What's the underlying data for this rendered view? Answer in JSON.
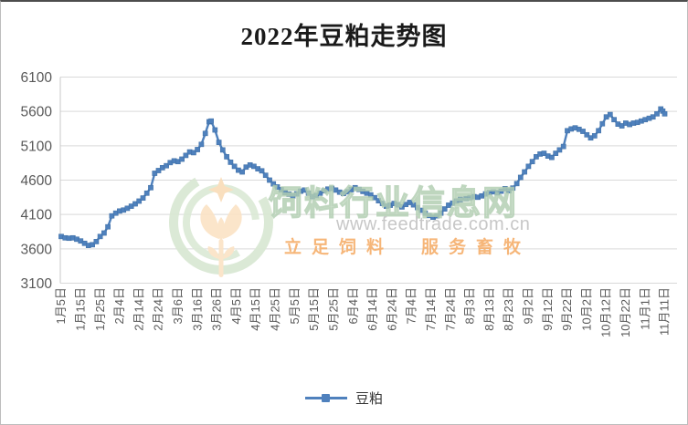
{
  "chart_data": {
    "type": "line",
    "title": "2022年豆粕走势图",
    "grid": true,
    "legend": {
      "position": "bottom"
    },
    "y_axis": {
      "min": 3100,
      "max": 6100,
      "ticks": [
        6100,
        5600,
        5100,
        4600,
        4100,
        3600,
        3100
      ]
    },
    "x_axis": {
      "interval_days": 10,
      "tick_labels": [
        "1月5日",
        "1月15日",
        "1月25日",
        "2月4日",
        "2月14日",
        "2月24日",
        "3月6日",
        "3月16日",
        "3月26日",
        "4月5日",
        "4月15日",
        "4月25日",
        "5月5日",
        "5月15日",
        "5月25日",
        "6月4日",
        "6月14日",
        "6月24日",
        "7月4日",
        "7月14日",
        "7月24日",
        "8月3日",
        "8月13日",
        "8月23日",
        "9月2日",
        "9月12日",
        "9月22日",
        "10月2日",
        "10月12日",
        "10月22日",
        "11月1日",
        "11月11日"
      ]
    },
    "series": [
      {
        "name": "豆粕",
        "color": "#4F81BD",
        "points": [
          [
            "1月5日",
            3780
          ],
          [
            "1月7日",
            3760
          ],
          [
            "1月9日",
            3755
          ],
          [
            "1月11日",
            3760
          ],
          [
            "1月13日",
            3740
          ],
          [
            "1月15日",
            3715
          ],
          [
            "1月17日",
            3680
          ],
          [
            "1月19日",
            3650
          ],
          [
            "1月21日",
            3660
          ],
          [
            "1月23日",
            3705
          ],
          [
            "1月25日",
            3780
          ],
          [
            "1月27日",
            3830
          ],
          [
            "1月29日",
            3920
          ],
          [
            "1月31日",
            4080
          ],
          [
            "2月2日",
            4120
          ],
          [
            "2月4日",
            4150
          ],
          [
            "2月6日",
            4165
          ],
          [
            "2月8日",
            4190
          ],
          [
            "2月10日",
            4220
          ],
          [
            "2月12日",
            4255
          ],
          [
            "2月14日",
            4295
          ],
          [
            "2月16日",
            4340
          ],
          [
            "2月18日",
            4410
          ],
          [
            "2月20日",
            4490
          ],
          [
            "2月22日",
            4700
          ],
          [
            "2月24日",
            4740
          ],
          [
            "2月26日",
            4780
          ],
          [
            "2月28日",
            4810
          ],
          [
            "3月2日",
            4855
          ],
          [
            "3月4日",
            4880
          ],
          [
            "3月6日",
            4870
          ],
          [
            "3月8日",
            4905
          ],
          [
            "3月10日",
            4960
          ],
          [
            "3月12日",
            5010
          ],
          [
            "3月14日",
            5000
          ],
          [
            "3月16日",
            5045
          ],
          [
            "3月18日",
            5120
          ],
          [
            "3月20日",
            5280
          ],
          [
            "3月22日",
            5450
          ],
          [
            "3月23日",
            5460
          ],
          [
            "3月25日",
            5330
          ],
          [
            "3月27日",
            5150
          ],
          [
            "3月29日",
            5040
          ],
          [
            "3月31日",
            4940
          ],
          [
            "4月2日",
            4860
          ],
          [
            "4月4日",
            4800
          ],
          [
            "4月6日",
            4745
          ],
          [
            "4月8日",
            4720
          ],
          [
            "4月10日",
            4790
          ],
          [
            "4月12日",
            4820
          ],
          [
            "4月14日",
            4800
          ],
          [
            "4月16日",
            4765
          ],
          [
            "4月18日",
            4735
          ],
          [
            "4月20日",
            4670
          ],
          [
            "4月22日",
            4600
          ],
          [
            "4月24日",
            4545
          ],
          [
            "4月26日",
            4500
          ],
          [
            "4月28日",
            4460
          ],
          [
            "4月30日",
            4420
          ],
          [
            "5月2日",
            4395
          ],
          [
            "5月4日",
            4370
          ],
          [
            "5月6日",
            4400
          ],
          [
            "5月8日",
            4440
          ],
          [
            "5月10日",
            4455
          ],
          [
            "5月12日",
            4410
          ],
          [
            "5月14日",
            4360
          ],
          [
            "5月16日",
            4375
          ],
          [
            "5月18日",
            4410
          ],
          [
            "5月20日",
            4445
          ],
          [
            "5月22日",
            4470
          ],
          [
            "5月24日",
            4480
          ],
          [
            "5月26日",
            4455
          ],
          [
            "5月28日",
            4425
          ],
          [
            "5月30日",
            4405
          ],
          [
            "6月1日",
            4430
          ],
          [
            "6月3日",
            4460
          ],
          [
            "6月5日",
            4490
          ],
          [
            "6月7日",
            4465
          ],
          [
            "6月9日",
            4435
          ],
          [
            "6月11日",
            4410
          ],
          [
            "6月13日",
            4385
          ],
          [
            "6月15日",
            4345
          ],
          [
            "6月17日",
            4300
          ],
          [
            "6月19日",
            4260
          ],
          [
            "6月21日",
            4220
          ],
          [
            "6月23日",
            4235
          ],
          [
            "6月25日",
            4260
          ],
          [
            "6月27日",
            4240
          ],
          [
            "6月29日",
            4210
          ],
          [
            "7月1日",
            4245
          ],
          [
            "7月3日",
            4275
          ],
          [
            "7月5日",
            4240
          ],
          [
            "7月7日",
            4200
          ],
          [
            "7月9日",
            4160
          ],
          [
            "7月11日",
            4120
          ],
          [
            "7月13日",
            4085
          ],
          [
            "7月15日",
            4060
          ],
          [
            "7月17日",
            4080
          ],
          [
            "7月19日",
            4120
          ],
          [
            "7月21日",
            4180
          ],
          [
            "7月23日",
            4235
          ],
          [
            "7月25日",
            4265
          ],
          [
            "7月27日",
            4295
          ],
          [
            "7月29日",
            4320
          ],
          [
            "8月1日",
            4330
          ],
          [
            "8月3日",
            4345
          ],
          [
            "8月5日",
            4360
          ],
          [
            "8月7日",
            4350
          ],
          [
            "8月9日",
            4370
          ],
          [
            "8月11日",
            4400
          ],
          [
            "8月13日",
            4420
          ],
          [
            "8月15日",
            4430
          ],
          [
            "8月17日",
            4415
          ],
          [
            "8月19日",
            4440
          ],
          [
            "8月21日",
            4475
          ],
          [
            "8月23日",
            4445
          ],
          [
            "8月25日",
            4485
          ],
          [
            "8月27日",
            4550
          ],
          [
            "8月29日",
            4640
          ],
          [
            "8月31日",
            4720
          ],
          [
            "9月2日",
            4800
          ],
          [
            "9月4日",
            4870
          ],
          [
            "9月6日",
            4940
          ],
          [
            "9月8日",
            4980
          ],
          [
            "9月10日",
            4990
          ],
          [
            "9月12日",
            4950
          ],
          [
            "9月14日",
            4930
          ],
          [
            "9月16日",
            4990
          ],
          [
            "9月18日",
            5040
          ],
          [
            "9月20日",
            5090
          ],
          [
            "9月22日",
            5320
          ],
          [
            "9月24日",
            5345
          ],
          [
            "9月26日",
            5360
          ],
          [
            "9月28日",
            5340
          ],
          [
            "9月30日",
            5310
          ],
          [
            "10月2日",
            5260
          ],
          [
            "10月4日",
            5215
          ],
          [
            "10月6日",
            5245
          ],
          [
            "10月8日",
            5320
          ],
          [
            "10月10日",
            5420
          ],
          [
            "10月12日",
            5520
          ],
          [
            "10月14日",
            5555
          ],
          [
            "10月16日",
            5480
          ],
          [
            "10月18日",
            5415
          ],
          [
            "10月20日",
            5390
          ],
          [
            "10月22日",
            5430
          ],
          [
            "10月24日",
            5410
          ],
          [
            "10月26日",
            5430
          ],
          [
            "10月28日",
            5440
          ],
          [
            "10月30日",
            5460
          ],
          [
            "11月1日",
            5480
          ],
          [
            "11月3日",
            5500
          ],
          [
            "11月5日",
            5520
          ],
          [
            "11月7日",
            5565
          ],
          [
            "11月9日",
            5635
          ],
          [
            "11月10日",
            5605
          ],
          [
            "11月11日",
            5565
          ]
        ]
      }
    ]
  },
  "watermark": {
    "site_name": "饲料行业信息网",
    "url": "www.feedtrade.com.cn",
    "slogan": "立足饲料　服务畜牧",
    "logo_colors": {
      "ring_green": "#d9e8d3",
      "wheat_orange": "#fbe3c6"
    }
  }
}
